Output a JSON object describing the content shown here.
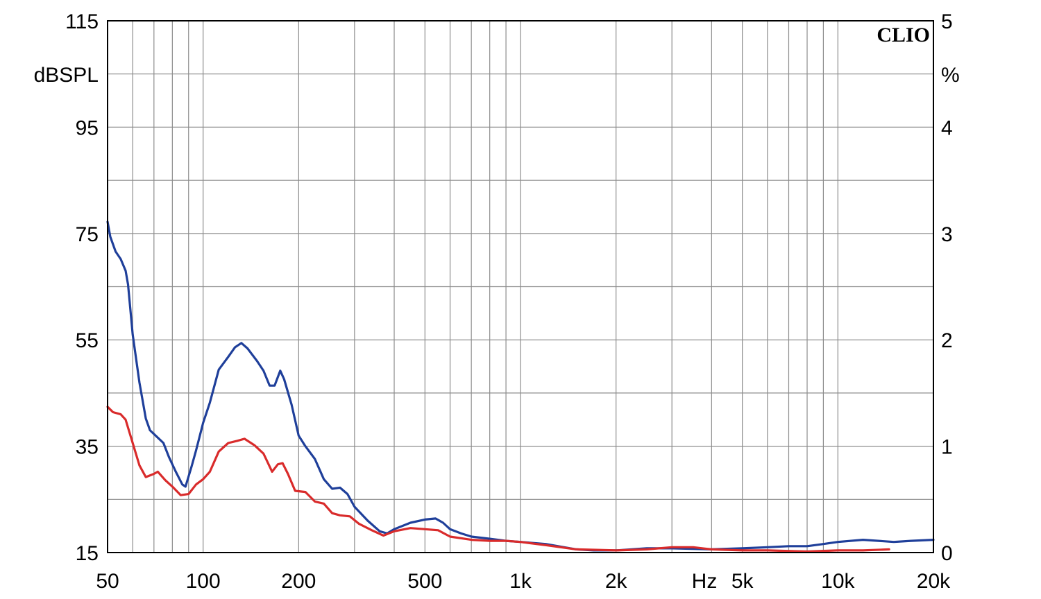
{
  "chart_data": {
    "type": "line",
    "brand": "CLIO",
    "x_unit_label": "Hz",
    "y_left_unit": "dBSPL",
    "y_right_unit": "%",
    "x_scale": "log",
    "xlim": [
      50,
      20000
    ],
    "y_left_lim": [
      15,
      115
    ],
    "y_right_lim": [
      0,
      5
    ],
    "x_ticks": [
      {
        "value": 50,
        "label": "50"
      },
      {
        "value": 100,
        "label": "100"
      },
      {
        "value": 200,
        "label": "200"
      },
      {
        "value": 500,
        "label": "500"
      },
      {
        "value": 1000,
        "label": "1k"
      },
      {
        "value": 2000,
        "label": "2k"
      },
      {
        "value": 5000,
        "label": "5k"
      },
      {
        "value": 10000,
        "label": "10k"
      },
      {
        "value": 20000,
        "label": "20k"
      }
    ],
    "y_left_ticks": [
      {
        "value": 115,
        "label": "115"
      },
      {
        "value": 95,
        "label": "95"
      },
      {
        "value": 75,
        "label": "75"
      },
      {
        "value": 55,
        "label": "55"
      },
      {
        "value": 35,
        "label": "35"
      },
      {
        "value": 15,
        "label": "15"
      }
    ],
    "y_right_ticks": [
      {
        "value": 5,
        "label": "5"
      },
      {
        "value": 4,
        "label": "4"
      },
      {
        "value": 3,
        "label": "3"
      },
      {
        "value": 2,
        "label": "2"
      },
      {
        "value": 1,
        "label": "1"
      },
      {
        "value": 0,
        "label": "0"
      }
    ],
    "grid": true,
    "series": [
      {
        "color": "#1f3f9a",
        "axis": "right",
        "points": [
          [
            50,
            3.11
          ],
          [
            51,
            2.97
          ],
          [
            53,
            2.83
          ],
          [
            55,
            2.76
          ],
          [
            57,
            2.65
          ],
          [
            58,
            2.52
          ],
          [
            60,
            2.05
          ],
          [
            63,
            1.6
          ],
          [
            66,
            1.26
          ],
          [
            68,
            1.15
          ],
          [
            72,
            1.08
          ],
          [
            75,
            1.03
          ],
          [
            78,
            0.9
          ],
          [
            82,
            0.76
          ],
          [
            86,
            0.64
          ],
          [
            88,
            0.62
          ],
          [
            92,
            0.81
          ],
          [
            95,
            0.96
          ],
          [
            100,
            1.22
          ],
          [
            105,
            1.41
          ],
          [
            112,
            1.72
          ],
          [
            120,
            1.84
          ],
          [
            126,
            1.93
          ],
          [
            132,
            1.97
          ],
          [
            138,
            1.92
          ],
          [
            148,
            1.8
          ],
          [
            155,
            1.71
          ],
          [
            162,
            1.57
          ],
          [
            168,
            1.57
          ],
          [
            175,
            1.71
          ],
          [
            180,
            1.63
          ],
          [
            190,
            1.39
          ],
          [
            200,
            1.1
          ],
          [
            210,
            1.0
          ],
          [
            225,
            0.88
          ],
          [
            240,
            0.69
          ],
          [
            255,
            0.6
          ],
          [
            270,
            0.61
          ],
          [
            285,
            0.55
          ],
          [
            300,
            0.43
          ],
          [
            330,
            0.3
          ],
          [
            360,
            0.2
          ],
          [
            380,
            0.18
          ],
          [
            400,
            0.22
          ],
          [
            450,
            0.28
          ],
          [
            500,
            0.31
          ],
          [
            540,
            0.32
          ],
          [
            570,
            0.28
          ],
          [
            600,
            0.22
          ],
          [
            650,
            0.18
          ],
          [
            700,
            0.15
          ],
          [
            800,
            0.13
          ],
          [
            900,
            0.11
          ],
          [
            1000,
            0.1
          ],
          [
            1200,
            0.08
          ],
          [
            1500,
            0.03
          ],
          [
            1700,
            0.02
          ],
          [
            2000,
            0.02
          ],
          [
            2500,
            0.04
          ],
          [
            3000,
            0.04
          ],
          [
            4000,
            0.03
          ],
          [
            5000,
            0.04
          ],
          [
            6000,
            0.05
          ],
          [
            7000,
            0.06
          ],
          [
            8000,
            0.06
          ],
          [
            9000,
            0.08
          ],
          [
            10000,
            0.1
          ],
          [
            12000,
            0.12
          ],
          [
            15000,
            0.1
          ],
          [
            17000,
            0.11
          ],
          [
            20000,
            0.12
          ]
        ]
      },
      {
        "color": "#d92b2b",
        "axis": "right",
        "points": [
          [
            50,
            1.37
          ],
          [
            52,
            1.32
          ],
          [
            55,
            1.3
          ],
          [
            57,
            1.25
          ],
          [
            60,
            1.03
          ],
          [
            63,
            0.82
          ],
          [
            66,
            0.71
          ],
          [
            70,
            0.74
          ],
          [
            72,
            0.76
          ],
          [
            76,
            0.68
          ],
          [
            80,
            0.62
          ],
          [
            85,
            0.54
          ],
          [
            90,
            0.55
          ],
          [
            95,
            0.64
          ],
          [
            100,
            0.69
          ],
          [
            105,
            0.76
          ],
          [
            112,
            0.95
          ],
          [
            120,
            1.03
          ],
          [
            128,
            1.05
          ],
          [
            135,
            1.07
          ],
          [
            145,
            1.01
          ],
          [
            155,
            0.93
          ],
          [
            165,
            0.76
          ],
          [
            172,
            0.83
          ],
          [
            178,
            0.84
          ],
          [
            185,
            0.74
          ],
          [
            195,
            0.58
          ],
          [
            210,
            0.57
          ],
          [
            225,
            0.48
          ],
          [
            240,
            0.46
          ],
          [
            255,
            0.37
          ],
          [
            270,
            0.35
          ],
          [
            290,
            0.34
          ],
          [
            310,
            0.27
          ],
          [
            340,
            0.21
          ],
          [
            370,
            0.16
          ],
          [
            400,
            0.2
          ],
          [
            450,
            0.23
          ],
          [
            500,
            0.22
          ],
          [
            550,
            0.21
          ],
          [
            600,
            0.15
          ],
          [
            700,
            0.12
          ],
          [
            800,
            0.11
          ],
          [
            900,
            0.11
          ],
          [
            1000,
            0.1
          ],
          [
            1200,
            0.07
          ],
          [
            1500,
            0.03
          ],
          [
            2000,
            0.02
          ],
          [
            2500,
            0.03
          ],
          [
            3000,
            0.05
          ],
          [
            3500,
            0.05
          ],
          [
            4000,
            0.03
          ],
          [
            5000,
            0.02
          ],
          [
            6000,
            0.02
          ],
          [
            8000,
            0.01
          ],
          [
            10000,
            0.02
          ],
          [
            12000,
            0.02
          ],
          [
            14500,
            0.03
          ]
        ]
      }
    ]
  }
}
